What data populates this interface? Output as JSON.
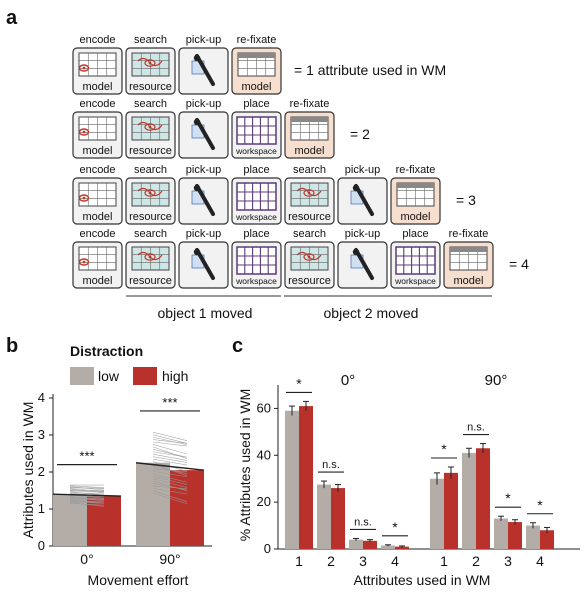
{
  "panel_labels": {
    "a": "a",
    "b": "b",
    "c": "c"
  },
  "panel_a": {
    "step_labels": {
      "encode": "encode",
      "search": "search",
      "pickup": "pick-up",
      "place": "place",
      "refixate": "re-fixate"
    },
    "tile_labels": {
      "model": "model",
      "resource": "resource",
      "workspace": "workspace"
    },
    "rows": [
      {
        "steps": [
          "encode",
          "search",
          "pickup",
          "refixate"
        ],
        "result": "= 1 attribute used in WM"
      },
      {
        "steps": [
          "encode",
          "search",
          "pickup",
          "place",
          "refixate"
        ],
        "result": "= 2"
      },
      {
        "steps": [
          "encode",
          "search",
          "pickup",
          "place",
          "search",
          "pickup",
          "refixate"
        ],
        "result": "= 3"
      },
      {
        "steps": [
          "encode",
          "search",
          "pickup",
          "place",
          "search",
          "pickup",
          "place",
          "refixate"
        ],
        "result": "= 4"
      }
    ],
    "bracket_labels": {
      "object1": "object 1 moved",
      "object2": "object 2 moved"
    }
  },
  "legend": {
    "title": "Distraction",
    "low": "low",
    "high": "high"
  },
  "colors": {
    "low": "#b3aca7",
    "high": "#b8312b",
    "refixate_bg": "#f7dfd0",
    "tile_bg": "#f2f2f2",
    "tile_border": "#333333"
  },
  "chart_data": [
    {
      "type": "bar",
      "panel": "b",
      "categories": [
        "0°",
        "90°"
      ],
      "series": [
        {
          "name": "low",
          "values": [
            1.4,
            2.25
          ]
        },
        {
          "name": "high",
          "values": [
            1.35,
            2.05
          ]
        }
      ],
      "significance": [
        "***",
        "***"
      ],
      "xlabel": "Movement effort",
      "ylabel": "Attributes used in WM",
      "ylim": [
        0,
        4
      ],
      "yticks": [
        0,
        1,
        2,
        3,
        4
      ],
      "individual_lines": true
    },
    {
      "type": "bar",
      "panel": "c",
      "groups": [
        {
          "title": "0°",
          "categories": [
            "1",
            "2",
            "3",
            "4"
          ],
          "series": [
            {
              "name": "low",
              "values": [
                59,
                27.5,
                4,
                1.5
              ]
            },
            {
              "name": "high",
              "values": [
                61,
                26,
                3.5,
                1
              ]
            }
          ],
          "errors": [
            {
              "low": 2,
              "high": 2
            },
            {
              "low": 1.5,
              "high": 1.5
            },
            {
              "low": 0.5,
              "high": 0.5
            },
            {
              "low": 0.3,
              "high": 0.3
            }
          ],
          "significance": [
            "*",
            "n.s.",
            "n.s.",
            "*"
          ]
        },
        {
          "title": "90°",
          "categories": [
            "1",
            "2",
            "3",
            "4"
          ],
          "series": [
            {
              "name": "low",
              "values": [
                30,
                41,
                13,
                10
              ]
            },
            {
              "name": "high",
              "values": [
                32.5,
                43,
                11.5,
                8
              ]
            }
          ],
          "errors": [
            {
              "low": 2.5,
              "high": 2.5
            },
            {
              "low": 2,
              "high": 2
            },
            {
              "low": 1,
              "high": 1
            },
            {
              "low": 1.2,
              "high": 1.2
            }
          ],
          "significance": [
            "*",
            "n.s.",
            "*",
            "*"
          ]
        }
      ],
      "xlabel": "Attributes used in WM",
      "ylabel": "% Attributes used in WM",
      "ylim": [
        0,
        70
      ],
      "yticks": [
        0,
        20,
        40,
        60
      ]
    }
  ]
}
